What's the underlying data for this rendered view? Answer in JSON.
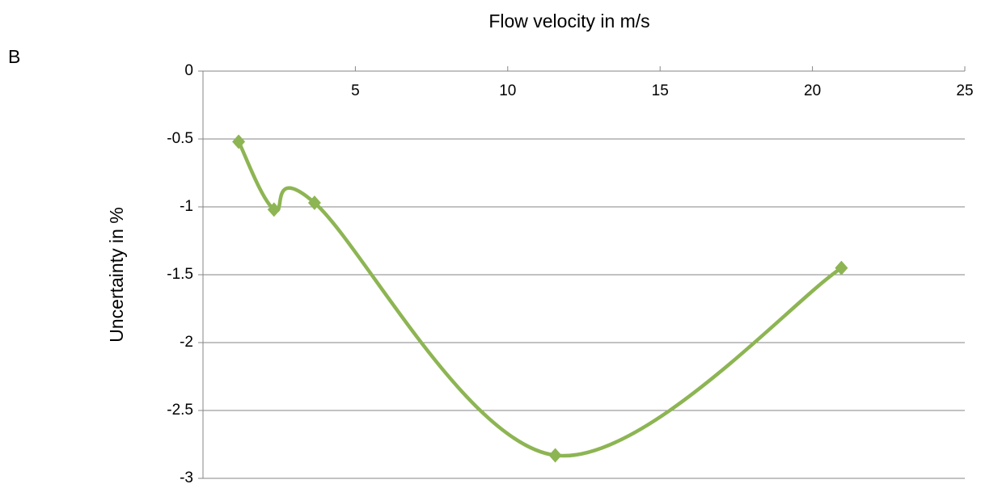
{
  "chart_data": {
    "type": "line",
    "panel_label": "B",
    "x_label": "Flow velocity in m/s",
    "y_label": "Uncertainty in %",
    "x": [
      1.17,
      2.33,
      3.66,
      11.56,
      20.95
    ],
    "series": [
      {
        "name": "Uncertainty",
        "color": "#8db553",
        "values": [
          -0.52,
          -1.02,
          -0.97,
          -2.83,
          -1.45
        ]
      }
    ],
    "xlim": [
      0,
      25
    ],
    "xticks": [
      5,
      10,
      15,
      20,
      25
    ],
    "ylim": [
      -3,
      0
    ],
    "yticks": [
      0,
      -0.5,
      -1,
      -1.5,
      -2,
      -2.5,
      -3
    ],
    "grid": true,
    "smooth": true
  }
}
